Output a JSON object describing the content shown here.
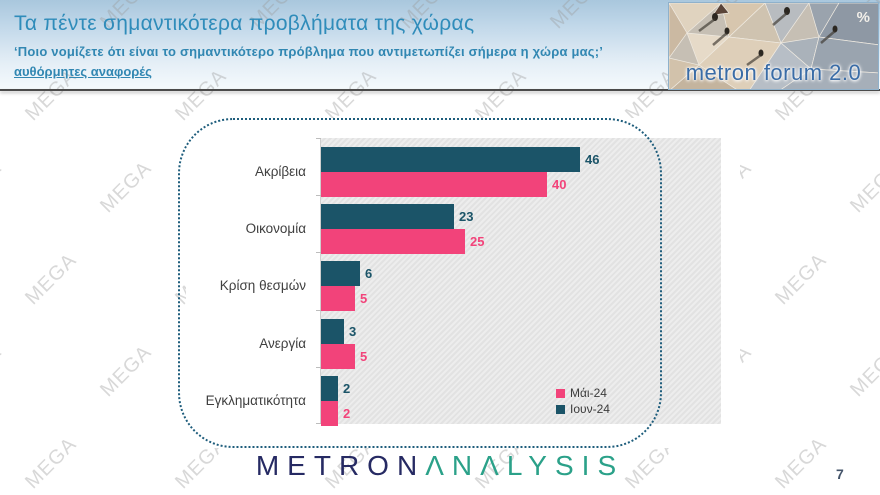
{
  "header": {
    "title": "Τα πέντε σημαντικότερα προβλήματα της χώρας",
    "subtitle": "‘Ποιο νομίζετε ότι είναι το σημαντικότερο πρόβλημα που αντιμετωπίζει σήμερα η χώρα μας;’",
    "note_link": "αυθόρμητες αναφορές",
    "logo": {
      "text": "metron forum 2.0",
      "percent_symbol": "%"
    }
  },
  "watermark": {
    "text": "MEGA"
  },
  "chart_data": {
    "type": "bar",
    "orientation": "horizontal",
    "title": "",
    "xlabel": "",
    "ylabel": "",
    "xlim": [
      0,
      70
    ],
    "grid": false,
    "plot_background": "gray-diagonal-hatch",
    "categories": [
      "Ακρίβεια",
      "Οικονομία",
      "Κρίση θεσμών",
      "Ανεργία",
      "Εγκληματικότητα"
    ],
    "series": [
      {
        "name": "Ιουν-24",
        "position": "top",
        "color": "#1b5468",
        "values": [
          46,
          23,
          6,
          3,
          2
        ]
      },
      {
        "name": "Μάι-24",
        "position": "bottom",
        "color": "#f2437a",
        "values": [
          40,
          25,
          5,
          5,
          2
        ]
      }
    ],
    "legend": [
      {
        "label": "Μάι-24",
        "color": "#f2437a"
      },
      {
        "label": "Ιουν-24",
        "color": "#1b5468"
      }
    ],
    "legend_position": "inside-bottom-right",
    "value_labels_shown": true
  },
  "footer": {
    "brand_metron": "METRON",
    "brand_analysis": "ΛNΛLYSIS",
    "page_number": "7"
  }
}
